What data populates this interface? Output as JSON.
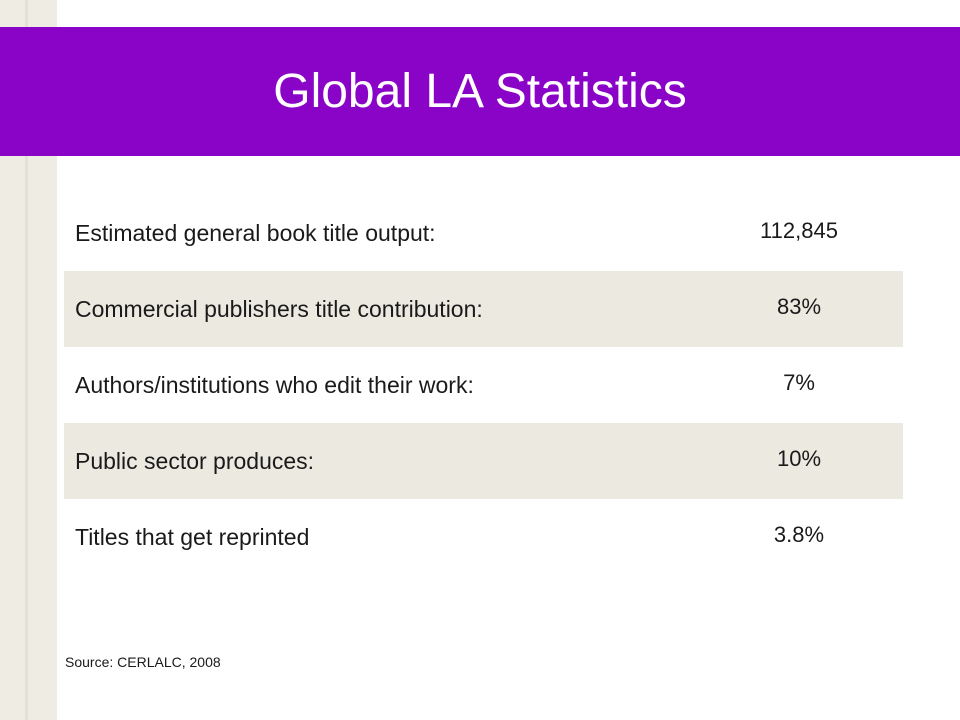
{
  "slide": {
    "title": "Global LA Statistics",
    "rows": [
      {
        "label": "Estimated general book title output:",
        "value": "112,845"
      },
      {
        "label": "Commercial publishers title contribution:",
        "value": "83%"
      },
      {
        "label": "Authors/institutions who edit their work:",
        "value": "7%"
      },
      {
        "label": "Public sector produces:",
        "value": "10%"
      },
      {
        "label": "Titles that get reprinted",
        "value": "3.8%"
      }
    ],
    "source": "Source: CERLALC, 2008"
  },
  "colors": {
    "title_bar": "#8a04c8",
    "row_shade": "#ece9e0",
    "left_strip": "#efece3"
  }
}
